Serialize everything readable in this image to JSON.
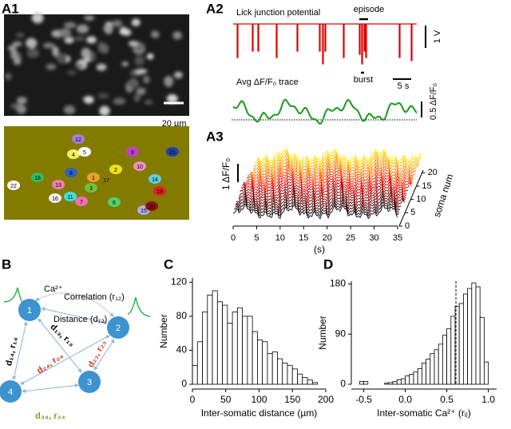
{
  "panel_labels": [
    "A1",
    "A2",
    "A3",
    "B",
    "C",
    "D"
  ],
  "a1": {
    "scale_bar": "20 µm",
    "cell_labels": [
      "1",
      "2",
      "3",
      "4",
      "5",
      "6",
      "7",
      "8",
      "9",
      "10",
      "11",
      "12",
      "13",
      "14",
      "15",
      "16",
      "17",
      "18",
      "19",
      "20",
      "21",
      "22"
    ]
  },
  "a2": {
    "lick_title": "Lick junction potential",
    "episode": "episode",
    "burst": "burst",
    "v_scale": "1 V",
    "t_scale": "5 s",
    "avg_title": "Avg ΔF/F₀ trace",
    "df_scale": "0.5 ΔF/F₀"
  },
  "b": {
    "ca": "Ca²⁺",
    "correlation": "Correlation (r₁₂)",
    "distance": "Distance (d₁₂)",
    "nodes": [
      "1",
      "2",
      "3",
      "4"
    ],
    "edges": [
      "d₁₄, r₁₄",
      "d₁₃, r₁₃",
      "d₂₄, r₂₄",
      "d₂₃, r₂₃",
      "d₃₄, r₃₄"
    ]
  },
  "chart_data": [
    {
      "type": "waterfall",
      "xlabel": "(s)",
      "zlabel": "soma num",
      "scale_label": "1 ΔF/F₀",
      "xlim": [
        0,
        35
      ],
      "xticks": [
        0,
        5,
        10,
        15,
        20,
        25,
        30,
        35
      ],
      "zlim": [
        0,
        21
      ],
      "zticks": [
        0,
        5,
        10,
        15,
        20
      ]
    },
    {
      "type": "histogram",
      "xlabel": "Inter-somatic distance (µm)",
      "ylabel": "Number",
      "color": "#ffffff",
      "bins": [
        0,
        7.5,
        15,
        22.5,
        30,
        37.5,
        45,
        52.5,
        60,
        67.5,
        75,
        82.5,
        90,
        97.5,
        105,
        112.5,
        120,
        127.5,
        135,
        142.5,
        150,
        157.5,
        165,
        172.5,
        180,
        187.5
      ],
      "values": [
        22,
        50,
        85,
        105,
        110,
        97,
        93,
        72,
        85,
        90,
        80,
        80,
        62,
        52,
        50,
        36,
        38,
        30,
        25,
        22,
        18,
        12,
        8,
        5,
        2
      ],
      "xlim": [
        0,
        200
      ],
      "xticks": [
        0,
        50,
        100,
        150,
        200
      ],
      "ylim": [
        0,
        125
      ],
      "yticks": [
        0,
        40,
        80,
        120
      ]
    },
    {
      "type": "histogram",
      "xlabel": "Inter-somatic Ca²⁺ (rᵢⱼ)",
      "ylabel": "Number",
      "color": "#ffffff",
      "bins": [
        -0.55,
        -0.5,
        -0.45,
        -0.4,
        -0.35,
        -0.3,
        -0.25,
        -0.2,
        -0.15,
        -0.1,
        -0.05,
        0,
        0.05,
        0.1,
        0.15,
        0.2,
        0.25,
        0.3,
        0.35,
        0.4,
        0.45,
        0.5,
        0.55,
        0.6,
        0.65,
        0.7,
        0.75,
        0.8,
        0.85,
        0.9,
        0.95,
        1.0
      ],
      "values": [
        5,
        5,
        0,
        0,
        0,
        0,
        2,
        3,
        5,
        8,
        10,
        15,
        18,
        22,
        28,
        38,
        45,
        55,
        62,
        72,
        88,
        100,
        122,
        140,
        145,
        162,
        172,
        182,
        175,
        120,
        40
      ],
      "marker_line": 0.61,
      "xlim": [
        -0.65,
        1.1
      ],
      "xticks": [
        -0.5,
        {
          "value": 0,
          "label": "0.0"
        },
        0.5,
        {
          "value": 1,
          "label": "1.0"
        }
      ],
      "ylim": [
        0,
        185
      ],
      "yticks": [
        0,
        90,
        180
      ]
    }
  ]
}
